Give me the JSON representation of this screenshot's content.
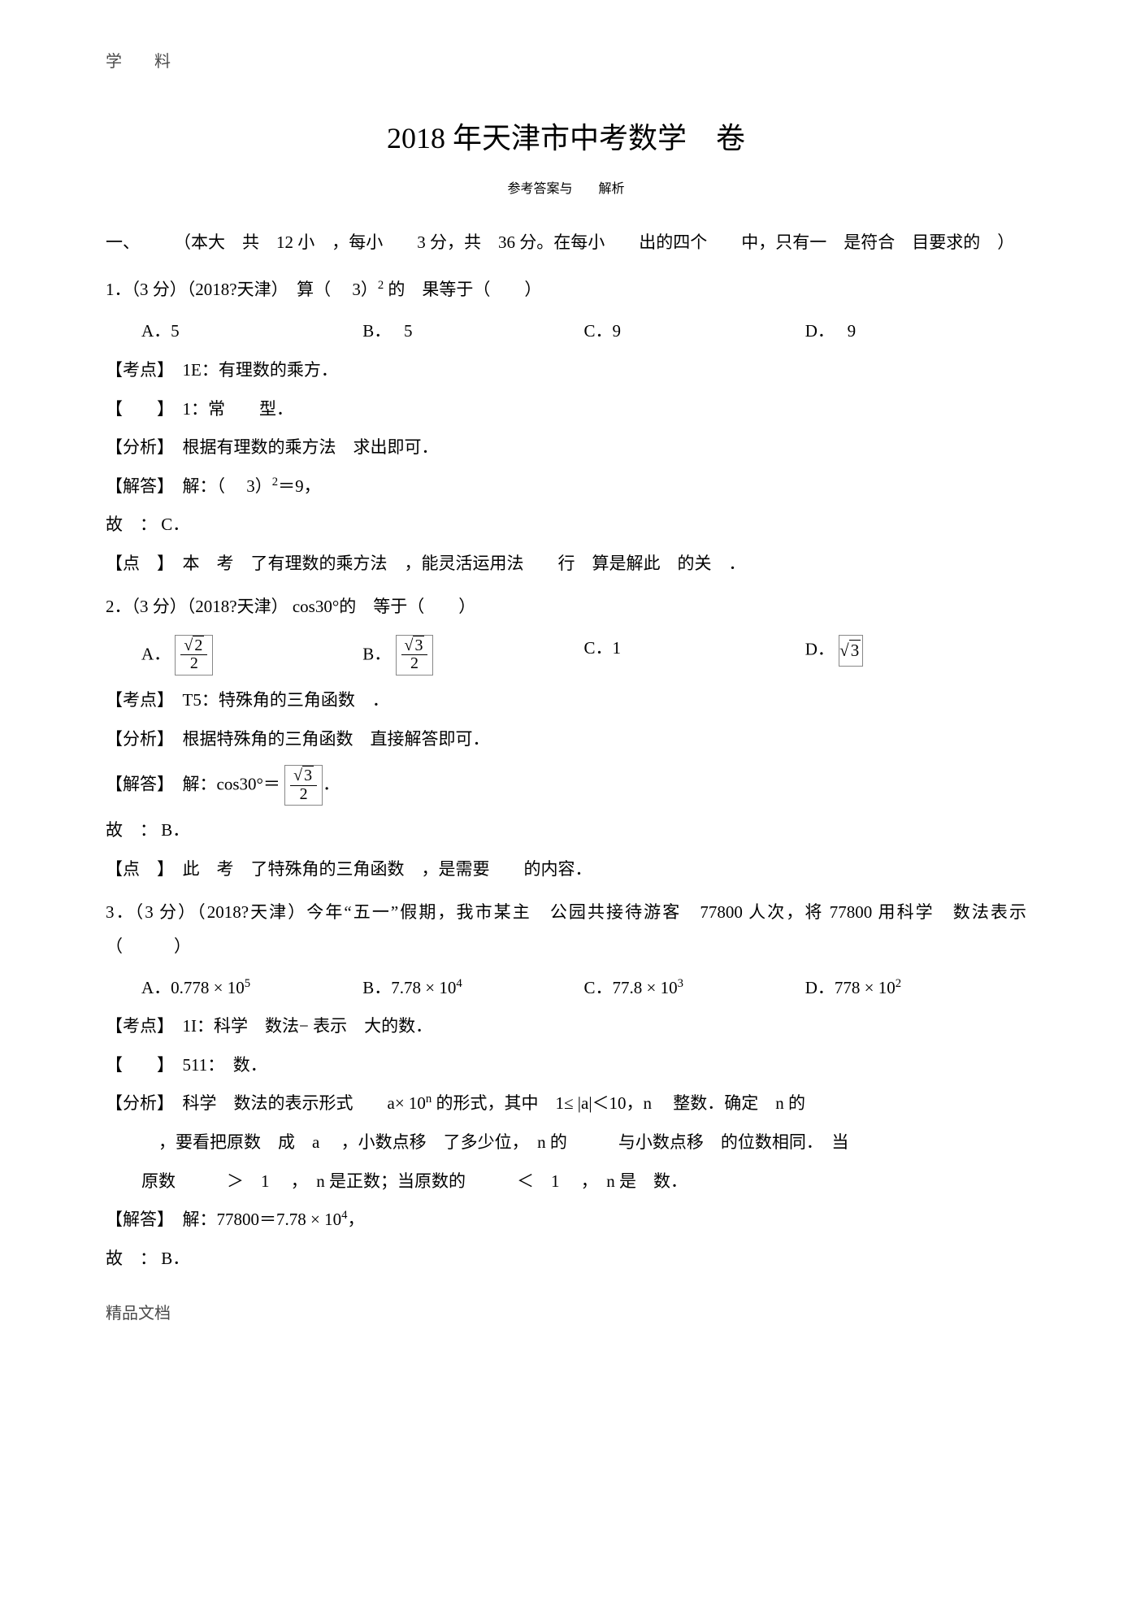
{
  "header_label": "学　　料",
  "title": "2018 年天津市中考数学　卷",
  "subtitle": "参考答案与　　解析",
  "section1": "一、　　　（本大　共　12 小　，每小　　3 分，共　36 分。在每小　　出的四个　　中，只有一　是符合　目要求的　）",
  "q1": {
    "stem": "1．（3 分）（2018?天津）　算（　 3）",
    "stem_after": " 的　果等于（　　）",
    "A": "A．5",
    "B": "B．　 5",
    "C": "C．9",
    "D": "D．　 9",
    "kaodian": "【考点】　1E：有理数的乘方．",
    "type": "【　　】　1：常　　型．",
    "fenxi": "【分析】　根据有理数的乘方法　求出即可．",
    "jieda_pre": "【解答】　解：（　 3）",
    "jieda_post": "＝9，",
    "conclusion": "故　： C．",
    "dianping": "【点　】　本　考　了有理数的乘方法　，能灵活运用法　　行　算是解此　的关　．"
  },
  "q2": {
    "stem": "2．（3 分）（2018?天津） cos30°的　等于（　　）",
    "A": "A．",
    "B": "B．",
    "C": "C．1",
    "D": "D．",
    "kaodian": "【考点】　T5：特殊角的三角函数　．",
    "fenxi": "【分析】　根据特殊角的三角函数　直接解答即可．",
    "jieda_pre": "【解答】　解：cos30°＝",
    "jieda_post": "．",
    "conclusion": "故　： B．",
    "dianping": "【点　】　此　考　了特殊角的三角函数　，是需要　　的内容．"
  },
  "q3": {
    "stem": "3．（3 分）（2018?天津）今年“五一”假期，我市某主　公园共接待游客　77800 人次，将 77800 用科学　数法表示　（　　　）",
    "A_pre": "A．0.778 × 10",
    "A_sup": "5",
    "B_pre": "B．7.78 × 10",
    "B_sup": "4",
    "C_pre": "C．77.8 × 10",
    "C_sup": "3",
    "D_pre": "D．778 × 10",
    "D_sup": "2",
    "kaodian": "【考点】　1I：科学　数法− 表示　大的数．",
    "type": "【　　】　511：　数．",
    "fenxi_1": "【分析】　科学　数法的表示形式　　a× 10",
    "fenxi_1_sup": "n",
    "fenxi_1_post": " 的形式，其中　1≤ |a|＜10，n 　整数．确定　n 的　",
    "fenxi_2": "　，要看把原数　成　a 　，小数点移　了多少位，　n 的　　　与小数点移　的位数相同．　当",
    "fenxi_3": "原数　　　＞　1 　，　n 是正数；当原数的　　　＜　1 　，　n 是　数．",
    "jieda_pre": "【解答】　解：77800＝7.78 × 10",
    "jieda_sup": "4",
    "jieda_post": "，",
    "conclusion": "故　： B．"
  },
  "footer": "精品文档"
}
